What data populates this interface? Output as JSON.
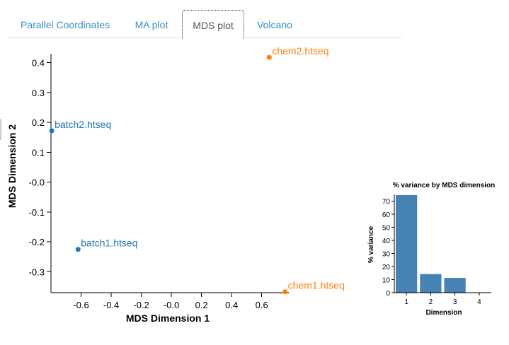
{
  "tabs": [
    {
      "label": "Parallel Coordinates",
      "active": false
    },
    {
      "label": "MA plot",
      "active": false
    },
    {
      "label": "MDS plot",
      "active": true
    },
    {
      "label": "Volcano",
      "active": false
    }
  ],
  "colors": {
    "accent": "#3b8fc7",
    "group_batch": "#1f77b4",
    "group_chem": "#ff7f0e",
    "bar": "#4682b4"
  },
  "chart_data": [
    {
      "type": "scatter",
      "title": "",
      "xlabel": "MDS Dimension 1",
      "ylabel": "MDS Dimension 2",
      "xlim": [
        -0.8,
        0.78
      ],
      "ylim": [
        -0.37,
        0.43
      ],
      "xticks": [
        -0.6,
        -0.4,
        -0.2,
        0.0,
        0.2,
        0.4,
        0.6
      ],
      "yticks": [
        0.4,
        0.3,
        0.2,
        0.1,
        0.0,
        -0.1,
        -0.2,
        -0.3
      ],
      "xtick_labels": [
        "-0.6",
        "-0.4",
        "-0.2",
        "-0.0",
        "0.2",
        "0.4",
        "0.6"
      ],
      "ytick_labels": [
        "0.4",
        "0.3",
        "0.2",
        "0.1",
        "-0.0",
        "-0.1",
        "-0.2",
        "-0.3"
      ],
      "points": [
        {
          "label": "chem2.htseq",
          "x": 0.65,
          "y": 0.418,
          "group": "chem"
        },
        {
          "label": "batch2.htseq",
          "x": -0.795,
          "y": 0.172,
          "group": "batch"
        },
        {
          "label": "batch1.htseq",
          "x": -0.62,
          "y": -0.225,
          "group": "batch"
        },
        {
          "label": "chem1.htseq",
          "x": 0.755,
          "y": -0.367,
          "group": "chem"
        }
      ]
    },
    {
      "type": "bar",
      "title": "% variance by MDS dimension",
      "xlabel": "Dimension",
      "ylabel": "% variance",
      "categories": [
        "1",
        "2",
        "3",
        "4"
      ],
      "values": [
        74.5,
        14.2,
        11.3,
        0
      ],
      "ylim": [
        0,
        75
      ],
      "yticks": [
        0,
        10,
        20,
        30,
        40,
        50,
        60,
        70
      ]
    }
  ]
}
